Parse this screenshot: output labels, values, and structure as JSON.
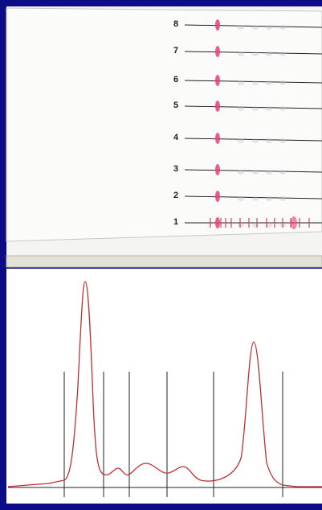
{
  "lanes": [
    "8",
    "7",
    "6",
    "5",
    "4",
    "3",
    "2",
    "1"
  ]
}
